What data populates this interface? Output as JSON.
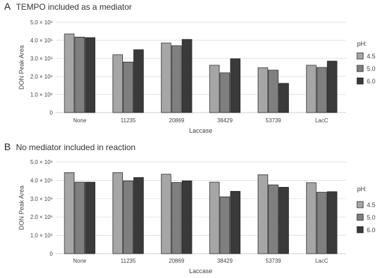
{
  "chart_data": [
    {
      "type": "bar",
      "panel_label": "A",
      "title": "TEMPO included as a mediator",
      "xlabel": "Laccase",
      "ylabel": "DON Peak Area",
      "ylim": [
        0,
        5000000
      ],
      "yticks": [
        0,
        1000000,
        2000000,
        3000000,
        4000000,
        5000000
      ],
      "ytick_labels": [
        "0",
        "1.0 × 10⁶",
        "2.0 × 10⁶",
        "3.0 × 10⁶",
        "4.0 × 10⁶",
        "5.0 × 10⁶"
      ],
      "categories": [
        "None",
        "11235",
        "20869",
        "38429",
        "53739",
        "LacC"
      ],
      "grid": true,
      "legend_title": "pH:",
      "legend_position": "right",
      "series": [
        {
          "name": "4.5",
          "color": "#a6a6a6",
          "values": [
            4350000,
            3200000,
            3850000,
            2620000,
            2480000,
            2620000
          ]
        },
        {
          "name": "5.0",
          "color": "#7f7f7f",
          "values": [
            4180000,
            2800000,
            3700000,
            2200000,
            2350000,
            2500000
          ]
        },
        {
          "name": "6.0",
          "color": "#3a3a3a",
          "values": [
            4150000,
            3480000,
            4050000,
            2980000,
            1620000,
            2850000
          ]
        }
      ]
    },
    {
      "type": "bar",
      "panel_label": "B",
      "title": "No mediator included in reaction",
      "xlabel": "Laccase",
      "ylabel": "DON Peak Area",
      "ylim": [
        0,
        5000000
      ],
      "yticks": [
        0,
        1000000,
        2000000,
        3000000,
        4000000,
        5000000
      ],
      "ytick_labels": [
        "0",
        "1.0 × 10⁶",
        "2.0 × 10⁶",
        "3.0 × 10⁶",
        "4.0 × 10⁶",
        "5.0 × 10⁶"
      ],
      "categories": [
        "None",
        "11235",
        "20869",
        "38429",
        "53739",
        "LacC"
      ],
      "grid": true,
      "legend_title": "pH:",
      "legend_position": "right",
      "series": [
        {
          "name": "4.5",
          "color": "#a6a6a6",
          "values": [
            4420000,
            4420000,
            4330000,
            3900000,
            4300000,
            3870000
          ]
        },
        {
          "name": "5.0",
          "color": "#7f7f7f",
          "values": [
            3900000,
            3970000,
            3880000,
            3100000,
            3750000,
            3350000
          ]
        },
        {
          "name": "6.0",
          "color": "#3a3a3a",
          "values": [
            3900000,
            4150000,
            3970000,
            3400000,
            3620000,
            3380000
          ]
        }
      ]
    }
  ]
}
